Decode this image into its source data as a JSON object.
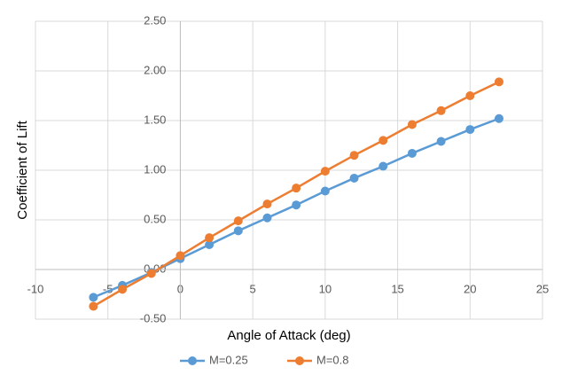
{
  "chart_data": {
    "type": "line",
    "x_label": "Angle of Attack (deg)",
    "y_label": "Coefficient of Lift",
    "xlim": [
      -10,
      25
    ],
    "xticks": [
      -10,
      -5,
      0,
      5,
      10,
      15,
      20,
      25
    ],
    "ylim": [
      -0.5,
      2.5
    ],
    "yticks": [
      {
        "value": -0.5,
        "label": "-0.50"
      },
      {
        "value": 0,
        "label": "0.00"
      },
      {
        "value": 0.5,
        "label": "0.50"
      },
      {
        "value": 1,
        "label": "1.00"
      },
      {
        "value": 1.5,
        "label": "1.50"
      },
      {
        "value": 2,
        "label": "2.00"
      },
      {
        "value": 2.5,
        "label": "2.50"
      }
    ],
    "grid": true,
    "legend": "bottom",
    "series": [
      {
        "name": "M=0.25",
        "color": "#5b9bd5",
        "x": [
          -6,
          -4,
          -2,
          0,
          2,
          4,
          6,
          8,
          10,
          12,
          14,
          16,
          18,
          20,
          22
        ],
        "values": [
          -0.28,
          -0.16,
          -0.03,
          0.11,
          0.25,
          0.39,
          0.52,
          0.65,
          0.79,
          0.92,
          1.04,
          1.17,
          1.29,
          1.41,
          1.52
        ]
      },
      {
        "name": "M=0.8",
        "color": "#ed7d31",
        "x": [
          -6,
          -4,
          -2,
          0,
          2,
          4,
          6,
          8,
          10,
          12,
          14,
          16,
          18,
          20,
          22
        ],
        "values": [
          -0.37,
          -0.2,
          -0.04,
          0.14,
          0.32,
          0.49,
          0.66,
          0.82,
          0.99,
          1.15,
          1.3,
          1.46,
          1.6,
          1.75,
          1.89
        ]
      }
    ]
  }
}
